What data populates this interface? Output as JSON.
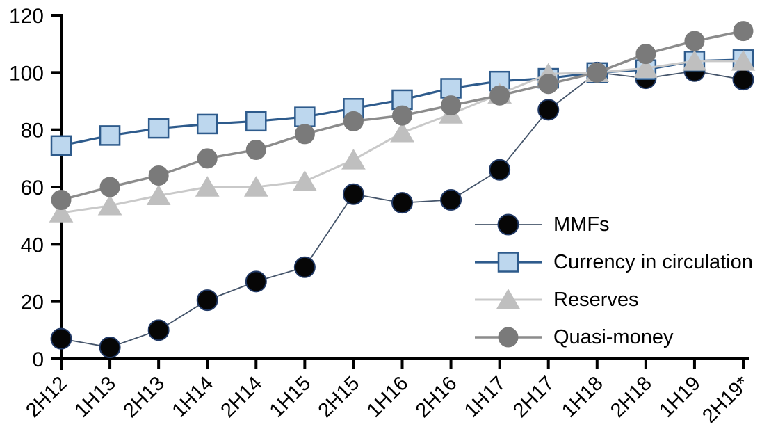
{
  "chart_data": {
    "type": "line",
    "title": "",
    "categories": [
      "2H12",
      "1H13",
      "2H13",
      "1H14",
      "2H14",
      "1H15",
      "2H15",
      "1H16",
      "2H16",
      "1H17",
      "2H17",
      "1H18",
      "2H18",
      "1H19",
      "2H19*"
    ],
    "series": [
      {
        "name": "MMFs",
        "marker": "circle",
        "line_color": "#44546A",
        "line_width": 1.8,
        "marker_fill": "#060606",
        "marker_stroke": "#203864",
        "marker_stroke_width": 2,
        "marker_size": 29,
        "values": [
          7,
          4,
          10,
          20.5,
          27,
          32,
          57.5,
          54.5,
          55.5,
          66,
          87,
          100,
          98,
          100.5,
          97.5
        ]
      },
      {
        "name": "Currency in circulation",
        "marker": "square",
        "line_color": "#2E5B8C",
        "line_width": 3.2,
        "marker_fill": "#BDD7EE",
        "marker_stroke": "#2E5B8C",
        "marker_stroke_width": 2.5,
        "marker_size": 28,
        "values": [
          74.5,
          78,
          80.5,
          82,
          83,
          84.5,
          87.5,
          90.5,
          94.5,
          97,
          98,
          100,
          101,
          104,
          104.5
        ]
      },
      {
        "name": "Reserves",
        "marker": "triangle",
        "line_color": "#C9C9C9",
        "line_width": 3,
        "marker_fill": "#BFBFBF",
        "marker_stroke": "#BFBFBF",
        "marker_stroke_width": 1,
        "marker_size": 33,
        "values": [
          51,
          53.5,
          57,
          60,
          60,
          62,
          69.5,
          79,
          85.5,
          92.5,
          99.5,
          100,
          101.5,
          104,
          104
        ]
      },
      {
        "name": "Quasi-money",
        "marker": "circle",
        "line_color": "#8C8C8C",
        "line_width": 3.5,
        "marker_fill": "#7A7A7A",
        "marker_stroke": "#7A7A7A",
        "marker_stroke_width": 1,
        "marker_size": 28,
        "values": [
          55.5,
          60,
          64,
          70,
          73,
          78.5,
          83,
          85,
          88.5,
          92,
          96,
          100,
          106.5,
          111,
          114.5
        ]
      }
    ],
    "y_axis": {
      "min": 0,
      "max": 120,
      "step": 20,
      "tick_labels": [
        "0",
        "20",
        "40",
        "60",
        "80",
        "100",
        "120"
      ]
    },
    "x_axis": {
      "label_rotation": -45
    },
    "legend": {
      "position": "inside-right",
      "entries": [
        "MMFs",
        "Currency in circulation",
        "Reserves",
        "Quasi-money"
      ]
    },
    "axis_color": "#000000",
    "background_color": "#FFFFFF",
    "grid": "off"
  }
}
